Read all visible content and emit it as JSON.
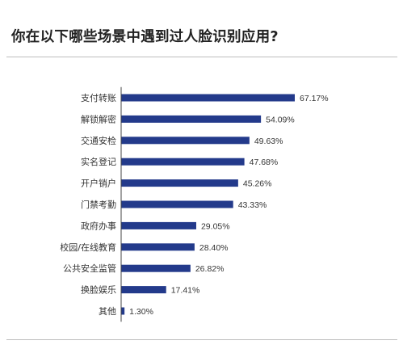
{
  "colors": {
    "bar": "#233a8b",
    "axis": "#444444",
    "background": "#ffffff"
  },
  "chart_data": {
    "type": "bar",
    "orientation": "horizontal",
    "title": "你在以下哪些场景中遇到过人脸识别应用?",
    "xlabel": "",
    "ylabel": "",
    "grid": false,
    "legend": "none",
    "xlim": [
      0,
      100
    ],
    "categories": [
      "支付转账",
      "解锁解密",
      "交通安检",
      "实名登记",
      "开户销户",
      "门禁考勤",
      "政府办事",
      "校园/在线教育",
      "公共安全监管",
      "换脸娱乐",
      "其他"
    ],
    "values": [
      67.17,
      54.09,
      49.63,
      47.68,
      45.26,
      43.33,
      29.05,
      28.4,
      26.82,
      17.41,
      1.3
    ],
    "value_labels": [
      "67.17%",
      "54.09%",
      "49.63%",
      "47.68%",
      "45.26%",
      "43.33%",
      "29.05%",
      "28.40%",
      "26.82%",
      "17.41%",
      "1.30%"
    ]
  }
}
